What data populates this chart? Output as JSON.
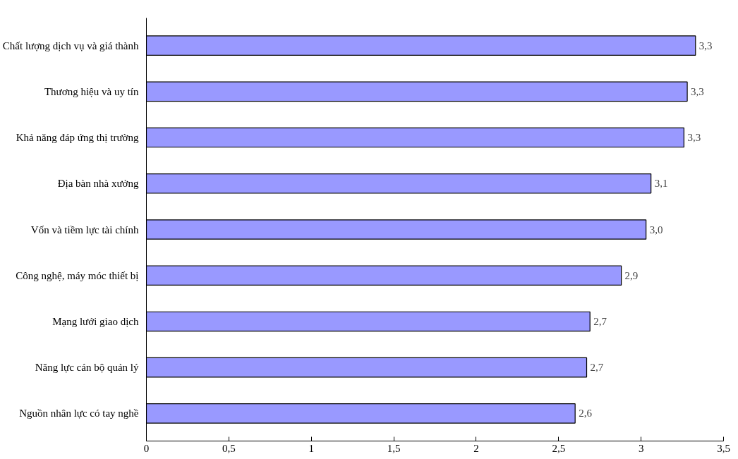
{
  "chart_data": {
    "type": "bar",
    "orientation": "horizontal",
    "categories": [
      "Chất lượng dịch vụ và giá thành",
      "Thương hiệu và uy tín",
      "Khả năng đáp ứng thị trường",
      "Địa bàn nhà xưởng",
      "Vốn và tiềm lực tài chính",
      "Công nghệ, máy móc thiết bị",
      "Mạng lưới giao dịch",
      "Năng lực cán bộ quản lý",
      "Nguồn nhân lực có tay nghề"
    ],
    "values": [
      3.33,
      3.28,
      3.26,
      3.06,
      3.03,
      2.88,
      2.69,
      2.67,
      2.6
    ],
    "value_labels": [
      "3,3",
      "3,3",
      "3,3",
      "3,1",
      "3,0",
      "2,9",
      "2,7",
      "2,7",
      "2,6"
    ],
    "color": "#9999ff",
    "xlim": [
      0,
      3.5
    ],
    "xticks": [
      0,
      {
        "value": 0.5,
        "label": "0,5"
      },
      1,
      {
        "value": 1.5,
        "label": "1,5"
      },
      2,
      {
        "value": 2.5,
        "label": "2,5"
      },
      3,
      {
        "value": 3.5,
        "label": "3,5"
      }
    ],
    "grid": false
  }
}
